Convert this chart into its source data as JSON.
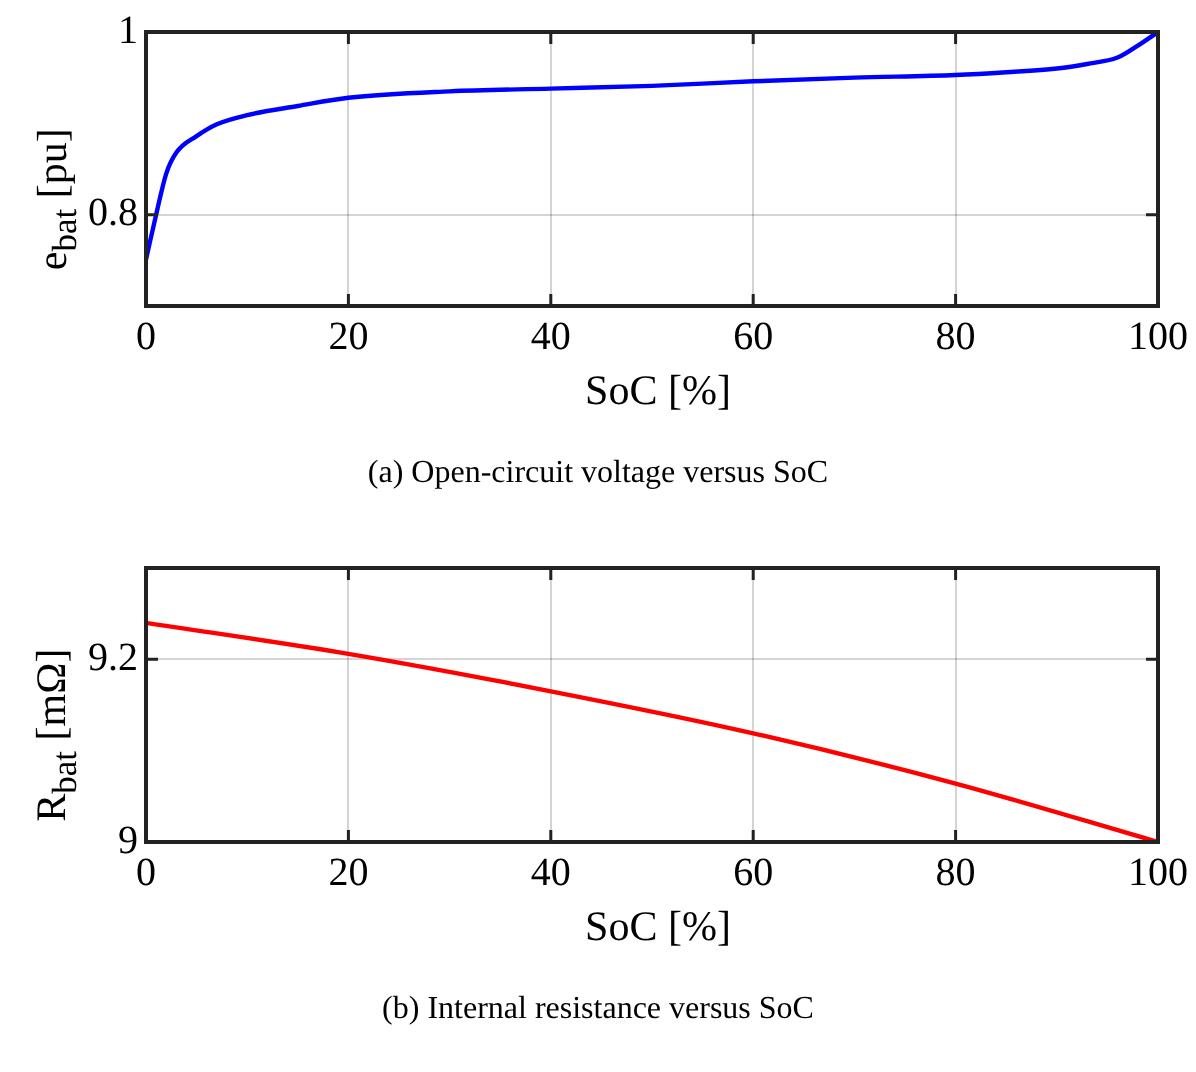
{
  "chart_data": [
    {
      "type": "line",
      "xlabel": "SoC [%]",
      "ylabel": "e$_{bat}$ [pu]",
      "annotations": [
        "(a)  Open-circuit voltage versus SoC"
      ],
      "series": [
        {
          "color": "#0000ff",
          "x": [
            0,
            1,
            2,
            3,
            5,
            7,
            10,
            15,
            20,
            30,
            40,
            50,
            60,
            70,
            80,
            85,
            90,
            93,
            96,
            98,
            100
          ],
          "values": [
            0.751,
            0.8,
            0.845,
            0.868,
            0.886,
            0.899,
            0.909,
            0.919,
            0.928,
            0.935,
            0.938,
            0.941,
            0.946,
            0.95,
            0.953,
            0.956,
            0.96,
            0.965,
            0.972,
            0.985,
            1
          ]
        }
      ],
      "xlim": [
        0,
        100
      ],
      "xticks": [
        0,
        20,
        40,
        60,
        80,
        100
      ],
      "ylim": [
        0.7,
        1
      ],
      "yticks": [
        0.8,
        1
      ],
      "grid": true,
      "line_style": "solid",
      "marker": "none"
    },
    {
      "type": "line",
      "xlabel": "SoC [%]",
      "ylabel": "R$_{bat}$ [mΩ]",
      "annotations": [
        "(b)  Internal resistance versus SoC"
      ],
      "series": [
        {
          "color": "#ff0000",
          "x": [
            0,
            20,
            40,
            60,
            80,
            100
          ],
          "values": [
            9.24,
            9.206,
            9.165,
            9.119,
            9.064,
            9.0
          ]
        }
      ],
      "xlim": [
        0,
        100
      ],
      "xticks": [
        0,
        20,
        40,
        60,
        80,
        100
      ],
      "ylim": [
        9,
        9.3
      ],
      "yticks": [
        9,
        9.2
      ],
      "grid": true,
      "line_style": "solid",
      "marker": "none"
    }
  ]
}
